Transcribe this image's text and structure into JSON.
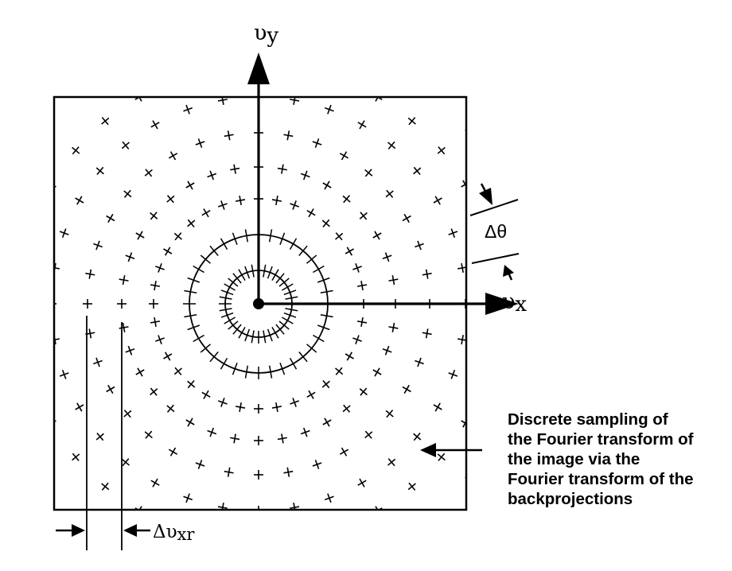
{
  "axes": {
    "y_symbol": "υ",
    "y_subscript": "y",
    "x_symbol": "υ",
    "x_subscript": "x"
  },
  "delta_theta_label": "Δθ",
  "delta_v_label_symbol": "Δυ",
  "delta_v_label_subscript": "xr",
  "annotation_lines": [
    "Discrete sampling of",
    "the Fourier transform of",
    "the image via the",
    "Fourier transform of the",
    "backprojections"
  ],
  "colors": {
    "ink": "#000000",
    "background": "#ffffff"
  },
  "icons": [
    "arrow-up-icon",
    "arrow-right-icon",
    "arrow-left-icon"
  ]
}
